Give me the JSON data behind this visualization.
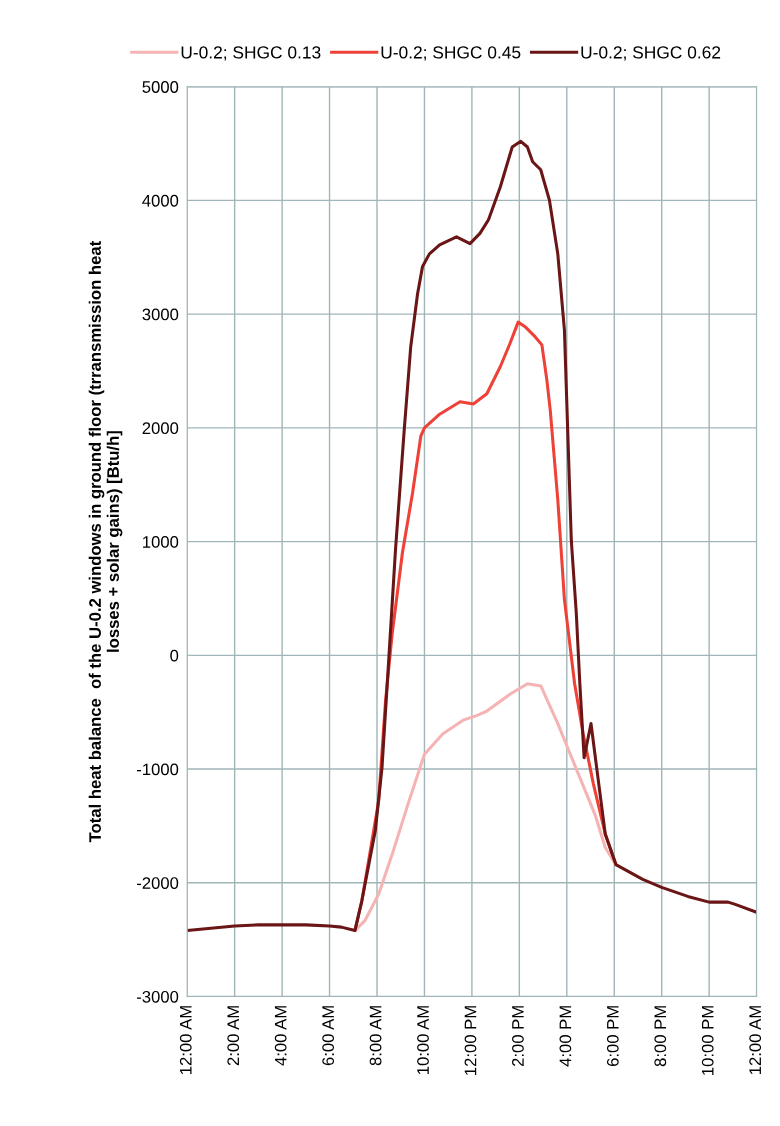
{
  "chart_data": {
    "type": "line",
    "ylabel": "Total heat balance  of the U-0.2 windows in ground floor (trransmission heat\nlosses + solar gains) [Btu/h]",
    "series": [
      {
        "name": "U-0.2; SHGC 0.13",
        "color": "#f5b3b3",
        "x": [
          7.07,
          7.5,
          8.07,
          8.64,
          9.35,
          10,
          10.78,
          11.63,
          12.2,
          12.63,
          13.62,
          14.34,
          14.91,
          15.62,
          16.48,
          17.19,
          17.62,
          18.07
        ],
        "values": [
          -2420,
          -2330,
          -2100,
          -1750,
          -1280,
          -870,
          -690,
          -570,
          -530,
          -490,
          -340,
          -250,
          -270,
          -600,
          -1040,
          -1400,
          -1690,
          -1840
        ]
      },
      {
        "name": "U-0.2; SHGC 0.45",
        "color": "#ee4238",
        "x": [
          7.07,
          7.36,
          8.07,
          8.36,
          8.64,
          9.07,
          9.5,
          9.85,
          10,
          10.64,
          11.5,
          12.06,
          12.63,
          13.2,
          13.6,
          13.95,
          14.24,
          14.67,
          14.95,
          15.16,
          15.3,
          15.62,
          15.9,
          16.33,
          16.69,
          17.12,
          17.62,
          18.07
        ],
        "values": [
          -2420,
          -2160,
          -1280,
          -400,
          190,
          900,
          1430,
          1930,
          2000,
          2120,
          2230,
          2210,
          2300,
          2540,
          2740,
          2930,
          2890,
          2800,
          2730,
          2420,
          2160,
          1370,
          490,
          -250,
          -690,
          -1130,
          -1570,
          -1840
        ]
      },
      {
        "name": "U-0.2; SHGC 0.62",
        "color": "#6b1616",
        "x": [
          0,
          1,
          2,
          3,
          4,
          5,
          6,
          6.5,
          7.07,
          7.36,
          7.93,
          8.21,
          8.5,
          8.78,
          9.14,
          9.42,
          9.71,
          9.92,
          10.21,
          10.64,
          11.35,
          11.92,
          12.34,
          12.7,
          13.2,
          13.7,
          14.06,
          14.34,
          14.56,
          14.9,
          15.27,
          15.62,
          15.9,
          16.19,
          16.4,
          16.55,
          16.73,
          17.02,
          17.26,
          17.62,
          18.07,
          19.2,
          20,
          21.1,
          22,
          22.8,
          23.1,
          24
        ],
        "values": [
          -2420,
          -2400,
          -2380,
          -2370,
          -2370,
          -2370,
          -2380,
          -2390,
          -2420,
          -2160,
          -1540,
          -990,
          -20,
          930,
          1960,
          2710,
          3180,
          3420,
          3530,
          3610,
          3680,
          3620,
          3710,
          3830,
          4120,
          4470,
          4520,
          4470,
          4340,
          4270,
          4000,
          3530,
          2860,
          1010,
          370,
          -250,
          -900,
          -600,
          -990,
          -1570,
          -1840,
          -1970,
          -2040,
          -2120,
          -2170,
          -2170,
          -2190,
          -2260
        ]
      }
    ],
    "xlim": [
      0,
      24
    ],
    "xticks": [
      {
        "value": 0,
        "label": "12:00 AM"
      },
      {
        "value": 2,
        "label": "2:00 AM"
      },
      {
        "value": 4,
        "label": "4:00 AM"
      },
      {
        "value": 6,
        "label": "6:00 AM"
      },
      {
        "value": 8,
        "label": "8:00 AM"
      },
      {
        "value": 10,
        "label": "10:00 AM"
      },
      {
        "value": 12,
        "label": "12:00 PM"
      },
      {
        "value": 14,
        "label": "2:00 PM"
      },
      {
        "value": 16,
        "label": "4:00 PM"
      },
      {
        "value": 18,
        "label": "6:00 PM"
      },
      {
        "value": 20,
        "label": "8:00 PM"
      },
      {
        "value": 22,
        "label": "10:00 PM"
      },
      {
        "value": 24,
        "label": "12:00 AM"
      }
    ],
    "ylim": [
      -3000,
      5000
    ],
    "yticks": [
      -3000,
      -2000,
      -1000,
      0,
      1000,
      2000,
      3000,
      4000,
      5000
    ],
    "grid": true,
    "legend": "top",
    "marker": "none",
    "line_style": "solid"
  }
}
